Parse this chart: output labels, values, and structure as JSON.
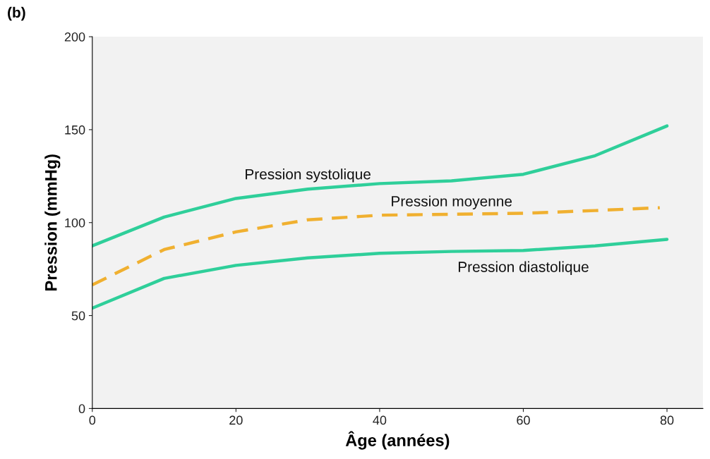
{
  "chart_data": {
    "type": "line",
    "xlabel": "Âge (années)",
    "ylabel": "Pression (mmHg)",
    "annotations": [
      "(b)"
    ],
    "xlim": [
      0,
      85
    ],
    "xticks": [
      0,
      20,
      40,
      60,
      80
    ],
    "ylim": [
      0,
      200
    ],
    "yticks": [
      0,
      50,
      100,
      150,
      200
    ],
    "grid": false,
    "legend": false,
    "marker": "none",
    "series": [
      {
        "name": "Pression systolique",
        "color": "#2fcf9a",
        "line_style": "solid",
        "x": [
          0,
          10,
          20,
          30,
          40,
          50,
          60,
          70,
          80
        ],
        "values": [
          87.5,
          103,
          113,
          118,
          121,
          122.5,
          126,
          136,
          152
        ]
      },
      {
        "name": "Pression moyenne",
        "color": "#f0b030",
        "line_style": "dashed",
        "x": [
          0,
          10,
          20,
          30,
          40,
          50,
          60,
          70,
          79
        ],
        "values": [
          66.5,
          85.5,
          95,
          101.5,
          104,
          104.5,
          105,
          106.5,
          108
        ]
      },
      {
        "name": "Pression diastolique",
        "color": "#2fcf9a",
        "line_style": "solid",
        "x": [
          0,
          10,
          20,
          30,
          40,
          50,
          60,
          70,
          80
        ],
        "values": [
          54,
          70,
          77,
          81,
          83.5,
          84.5,
          85,
          87.5,
          91
        ]
      }
    ]
  }
}
